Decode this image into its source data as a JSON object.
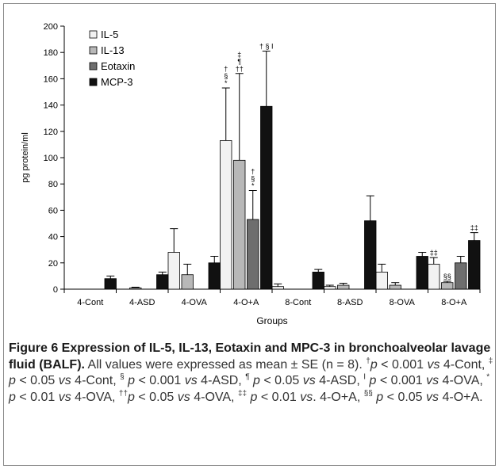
{
  "chart_data": {
    "type": "bar",
    "xlabel": "Groups",
    "ylabel": "pg protein/ml",
    "ylim": [
      0,
      200
    ],
    "yticks": [
      0,
      20,
      40,
      60,
      80,
      100,
      120,
      140,
      160,
      180,
      200
    ],
    "categories": [
      "4-Cont",
      "4-ASD",
      "4-OVA",
      "4-O+A",
      "8-Cont",
      "8-ASD",
      "8-OVA",
      "8-O+A"
    ],
    "legend_position": "top-left",
    "series": [
      {
        "name": "IL-5",
        "color": "#f2f2f2",
        "values": [
          0,
          0,
          28,
          113,
          2,
          2,
          13,
          19
        ],
        "errors": [
          0,
          0,
          18,
          40,
          2,
          1,
          6,
          5
        ]
      },
      {
        "name": "IL-13",
        "color": "#b8b8b8",
        "values": [
          0,
          1,
          11,
          98,
          0,
          3,
          3,
          5
        ],
        "errors": [
          0,
          0.5,
          8,
          66,
          0,
          1.5,
          2,
          1
        ]
      },
      {
        "name": "Eotaxin",
        "color": "#6e6e6e",
        "values": [
          0,
          0,
          0,
          53,
          0,
          0,
          0,
          20
        ],
        "errors": [
          0,
          0,
          0,
          22,
          0,
          0,
          0,
          5
        ]
      },
      {
        "name": "MCP-3",
        "color": "#111111",
        "values": [
          8,
          11,
          20,
          139,
          13,
          52,
          25,
          37
        ],
        "errors": [
          2,
          2,
          5,
          42,
          2,
          19,
          3,
          6
        ]
      }
    ],
    "annotations": [
      {
        "category": "4-O+A",
        "series": "IL-5",
        "symbols": [
          "†",
          "§",
          "*"
        ]
      },
      {
        "category": "4-O+A",
        "series": "IL-13",
        "symbols": [
          "‡",
          "¶",
          "††"
        ]
      },
      {
        "category": "4-O+A",
        "series": "Eotaxin",
        "symbols": [
          "†",
          "§",
          "*"
        ]
      },
      {
        "category": "4-O+A",
        "series": "MCP-3",
        "symbols": [
          "† § I"
        ]
      },
      {
        "category": "8-O+A",
        "series": "IL-5",
        "symbols": [
          "‡‡"
        ]
      },
      {
        "category": "8-O+A",
        "series": "IL-13",
        "symbols": [
          "§§"
        ]
      },
      {
        "category": "8-O+A",
        "series": "MCP-3",
        "symbols": [
          "‡‡"
        ]
      }
    ]
  },
  "caption": {
    "title": "Figure 6 Expression of IL-5, IL-13, Eotaxin and MPC-3 in bronchoalveolar lavage fluid (BALF).",
    "intro": " All values were expressed as mean ± SE (n = 8). ",
    "notes": [
      {
        "sup": "†",
        "text": "p < 0.001 vs 4-Cont, "
      },
      {
        "sup": "‡",
        "text": " p < 0.05 vs 4-Cont, "
      },
      {
        "sup": "§",
        "text": " p < 0.001 vs 4-ASD, "
      },
      {
        "sup": "¶",
        "text": " p < 0.05 vs 4-ASD, "
      },
      {
        "sup": "I",
        "text": " p < 0.001 vs 4-OVA, "
      },
      {
        "sup": "*",
        "text": " p < 0.01 vs 4-OVA, "
      },
      {
        "sup": "††",
        "text": "p < 0.05 vs 4-OVA, "
      },
      {
        "sup": "‡‡",
        "text": " p < 0.01 vs. 4-O+A, "
      },
      {
        "sup": "§§",
        "text": " p < 0.05 vs 4-O+A."
      }
    ]
  }
}
